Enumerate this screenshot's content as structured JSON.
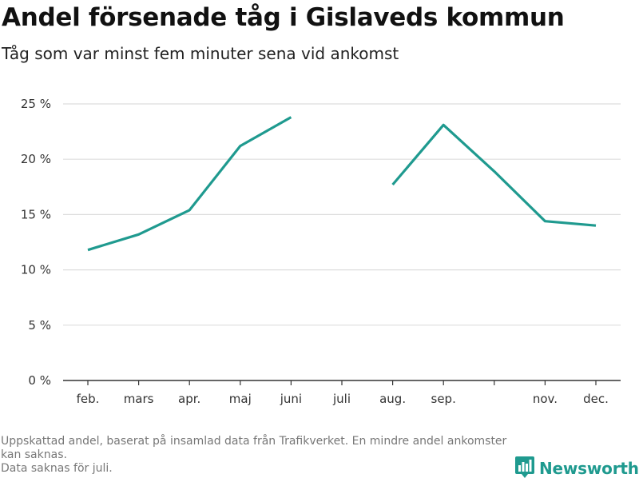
{
  "title": "Andel försenade tåg i Gislaveds kommun",
  "subtitle": "Tåg som var minst fem minuter sena vid ankomst",
  "footnote": {
    "line1": "Uppskattad andel, baserat på insamlad data från Trafikverket. En mindre andel ankomster kan saknas.",
    "line2": "Data saknas för juli."
  },
  "brand": {
    "name": "Newsworthy",
    "icon": "newsworthy-logo-icon",
    "color": "#1f9a8f"
  },
  "chart_data": {
    "type": "line",
    "title": "Andel försenade tåg i Gislaveds kommun",
    "subtitle": "Tåg som var minst fem minuter sena vid ankomst",
    "xlabel": "",
    "ylabel": "",
    "categories": [
      "feb.",
      "mars",
      "apr.",
      "maj",
      "juni",
      "juli",
      "aug.",
      "sep.",
      "",
      "nov.",
      "dec."
    ],
    "series": [
      {
        "values": [
          11.8,
          13.2,
          15.4,
          21.2,
          23.8,
          null,
          17.7,
          23.1,
          null,
          14.4,
          14.0
        ],
        "color": "#1f9a8f"
      }
    ],
    "ylim": [
      0,
      25
    ],
    "yticks": [
      0,
      5,
      10,
      15,
      20,
      25
    ],
    "ytick_labels": [
      "0 %",
      "5 %",
      "10 %",
      "15 %",
      "20 %",
      "25 %"
    ],
    "oct_point": 18.9,
    "grid": true,
    "legend": "none"
  }
}
